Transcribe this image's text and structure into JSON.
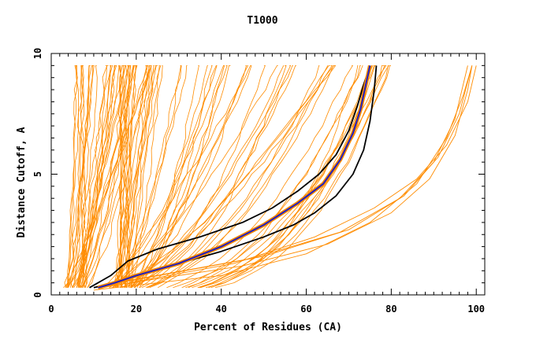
{
  "chart_data": {
    "type": "line",
    "title": "T1000",
    "xlabel": "Percent of Residues (CA)",
    "ylabel": "Distance Cutoff, A",
    "xlim": [
      0,
      102
    ],
    "ylim": [
      0,
      10
    ],
    "x_ticks": [
      0,
      20,
      40,
      60,
      80,
      100
    ],
    "y_ticks": [
      0,
      5,
      10
    ],
    "grid": false,
    "colors": {
      "orange": "#ff8c00",
      "blue": "#1f1fbf",
      "black": "#000000",
      "frame": "#000000"
    },
    "y_levels": [
      0.3,
      0.5,
      1,
      1.5,
      2,
      2.5,
      3,
      3.5,
      4,
      4.5,
      5,
      5.5,
      6,
      6.5,
      7,
      7.5,
      8,
      8.5,
      9,
      9.5
    ],
    "bands": [
      {
        "name": "steep-group-a",
        "count": 35,
        "start": [
          2,
          9
        ],
        "end": [
          5,
          25
        ],
        "power": [
          1.0,
          1.6
        ],
        "top": 9.5
      },
      {
        "name": "steep-group-b",
        "count": 22,
        "start": [
          14,
          19
        ],
        "end": [
          16,
          27
        ],
        "power": [
          0.8,
          1.5
        ],
        "top": 9.5
      },
      {
        "name": "mid-group",
        "count": 30,
        "start": [
          8,
          18
        ],
        "end": [
          30,
          70
        ],
        "power": [
          1.2,
          2.4
        ],
        "top": 9.5
      },
      {
        "name": "right-group",
        "count": 14,
        "start": [
          10,
          22
        ],
        "end": [
          70,
          80
        ],
        "power": [
          2.2,
          3.4
        ],
        "top": 9.5
      }
    ],
    "fan_lines": [
      {
        "name": "fan-1",
        "x": [
          10,
          40,
          60,
          75,
          86,
          93,
          97,
          99
        ],
        "y": [
          0.2,
          0.8,
          1.7,
          3.0,
          4.6,
          6.5,
          8.3,
          9.5
        ]
      },
      {
        "name": "fan-2",
        "x": [
          11,
          45,
          65,
          80,
          89,
          95,
          98,
          99
        ],
        "y": [
          0.3,
          1.2,
          2.1,
          3.4,
          4.8,
          6.6,
          8.5,
          9.5
        ]
      },
      {
        "name": "fan-3",
        "x": [
          12,
          50,
          70,
          83,
          91,
          96,
          99
        ],
        "y": [
          0.4,
          1.6,
          2.7,
          4.1,
          5.7,
          7.5,
          9.5
        ]
      },
      {
        "name": "fan-4",
        "x": [
          13,
          47,
          68,
          82,
          90,
          95,
          98
        ],
        "y": [
          0.4,
          1.5,
          2.6,
          4.0,
          5.5,
          7.3,
          9.5
        ]
      },
      {
        "name": "fan-5",
        "x": [
          12,
          43,
          62,
          76,
          86,
          93,
          98,
          100
        ],
        "y": [
          0.3,
          1.3,
          2.4,
          3.6,
          4.8,
          6.2,
          8.0,
          9.5
        ]
      }
    ],
    "series": [
      {
        "name": "black-upper",
        "color": "#000000",
        "width": 1.8,
        "x": [
          9,
          14,
          18,
          25,
          35,
          45,
          52,
          58,
          63,
          67,
          70,
          72,
          73.5,
          75
        ],
        "y": [
          0.3,
          0.8,
          1.4,
          1.9,
          2.4,
          3.0,
          3.6,
          4.3,
          5.0,
          5.8,
          6.8,
          7.8,
          8.7,
          9.5
        ]
      },
      {
        "name": "black-lower",
        "color": "#000000",
        "width": 1.8,
        "x": [
          10,
          15,
          20,
          30,
          40,
          50,
          57,
          62,
          67,
          71,
          73.5,
          75,
          76,
          76.5
        ],
        "y": [
          0.3,
          0.5,
          0.8,
          1.3,
          1.8,
          2.4,
          2.9,
          3.4,
          4.1,
          5.0,
          6.0,
          7.2,
          8.5,
          9.5
        ]
      },
      {
        "name": "orange-thick",
        "color": "#ff8c00",
        "width": 5.0,
        "x": [
          11,
          15,
          20,
          30,
          40,
          50,
          58,
          64,
          68,
          71,
          72.8,
          74,
          75
        ],
        "y": [
          0.3,
          0.5,
          0.8,
          1.3,
          2.0,
          2.9,
          3.8,
          4.6,
          5.6,
          6.7,
          7.7,
          8.7,
          9.5
        ]
      },
      {
        "name": "blue-reference",
        "color": "#1f1fbf",
        "width": 2.0,
        "x": [
          11,
          15,
          20,
          30,
          40,
          50,
          58,
          64,
          68,
          71,
          72.8,
          74,
          75
        ],
        "y": [
          0.3,
          0.5,
          0.8,
          1.3,
          2.0,
          2.9,
          3.8,
          4.6,
          5.6,
          6.7,
          7.7,
          8.7,
          9.5
        ]
      }
    ]
  }
}
